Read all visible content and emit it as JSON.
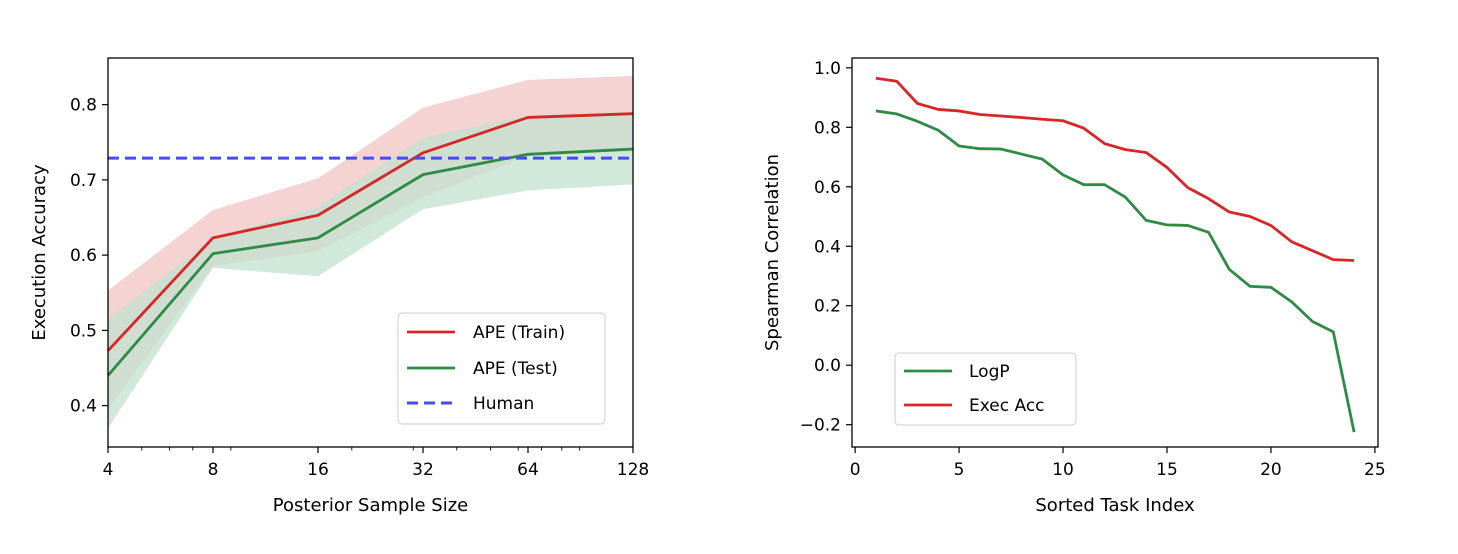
{
  "chart_data": [
    {
      "type": "line",
      "title": "",
      "xlabel": "Posterior Sample Size",
      "ylabel": "Execution Accuracy",
      "xscale": "log2",
      "x": [
        4,
        8,
        16,
        32,
        64,
        128
      ],
      "xticks": [
        4,
        8,
        16,
        32,
        64,
        128
      ],
      "xtick_labels": [
        "4",
        "8",
        "16",
        "32",
        "64",
        "128"
      ],
      "xlim": [
        4,
        128
      ],
      "ylim": [
        0.345,
        0.862
      ],
      "yticks": [
        0.4,
        0.5,
        0.6,
        0.7,
        0.8
      ],
      "ytick_labels": [
        "0.4",
        "0.5",
        "0.6",
        "0.7",
        "0.8"
      ],
      "series": [
        {
          "name": "APE (Train)",
          "color": "#d62728",
          "fill": "#f2c4c4",
          "values": [
            0.473,
            0.623,
            0.653,
            0.736,
            0.783,
            0.788
          ],
          "lower": [
            0.395,
            0.586,
            0.605,
            0.677,
            0.732,
            0.738
          ],
          "upper": [
            0.553,
            0.66,
            0.702,
            0.796,
            0.833,
            0.838
          ]
        },
        {
          "name": "APE (Test)",
          "color": "#2e8b46",
          "fill": "#c2e2cf",
          "values": [
            0.44,
            0.602,
            0.623,
            0.707,
            0.734,
            0.741
          ],
          "lower": [
            0.37,
            0.583,
            0.572,
            0.661,
            0.686,
            0.694
          ],
          "upper": [
            0.515,
            0.622,
            0.665,
            0.756,
            0.786,
            0.79
          ]
        },
        {
          "name": "Human",
          "color": "#4a4af2",
          "style": "dashed",
          "constant": 0.729
        }
      ],
      "legend": {
        "position": "lower-right",
        "entries": [
          "APE (Train)",
          "APE (Test)",
          "Human"
        ]
      }
    },
    {
      "type": "line",
      "title": "",
      "xlabel": "Sorted Task Index",
      "ylabel": "Spearman Correlation",
      "xlim": [
        -0.15,
        25.15
      ],
      "ylim": [
        -0.275,
        1.033
      ],
      "xticks": [
        0,
        5,
        10,
        15,
        20,
        25
      ],
      "xtick_labels": [
        "0",
        "5",
        "10",
        "15",
        "20",
        "25"
      ],
      "yticks": [
        -0.2,
        0.0,
        0.2,
        0.4,
        0.6,
        0.8,
        1.0
      ],
      "ytick_labels": [
        "−0.2",
        "0.0",
        "0.2",
        "0.4",
        "0.6",
        "0.8",
        "1.0"
      ],
      "x": [
        1,
        2,
        3,
        4,
        5,
        6,
        7,
        8,
        9,
        10,
        11,
        12,
        13,
        14,
        15,
        16,
        17,
        18,
        19,
        20,
        21,
        22,
        23,
        24
      ],
      "series": [
        {
          "name": "LogP",
          "color": "#2e8b46",
          "values": [
            0.855,
            0.845,
            0.82,
            0.79,
            0.737,
            0.728,
            0.727,
            0.71,
            0.693,
            0.64,
            0.607,
            0.607,
            0.565,
            0.487,
            0.472,
            0.47,
            0.447,
            0.322,
            0.265,
            0.262,
            0.213,
            0.147,
            0.112,
            -0.225
          ]
        },
        {
          "name": "Exec Acc",
          "color": "#d62728",
          "values": [
            0.965,
            0.955,
            0.88,
            0.86,
            0.855,
            0.843,
            0.838,
            0.833,
            0.827,
            0.822,
            0.797,
            0.745,
            0.725,
            0.715,
            0.665,
            0.597,
            0.56,
            0.515,
            0.5,
            0.47,
            0.415,
            0.385,
            0.355,
            0.352
          ]
        }
      ],
      "legend": {
        "position": "lower-left",
        "entries": [
          "LogP",
          "Exec Acc"
        ]
      }
    }
  ]
}
